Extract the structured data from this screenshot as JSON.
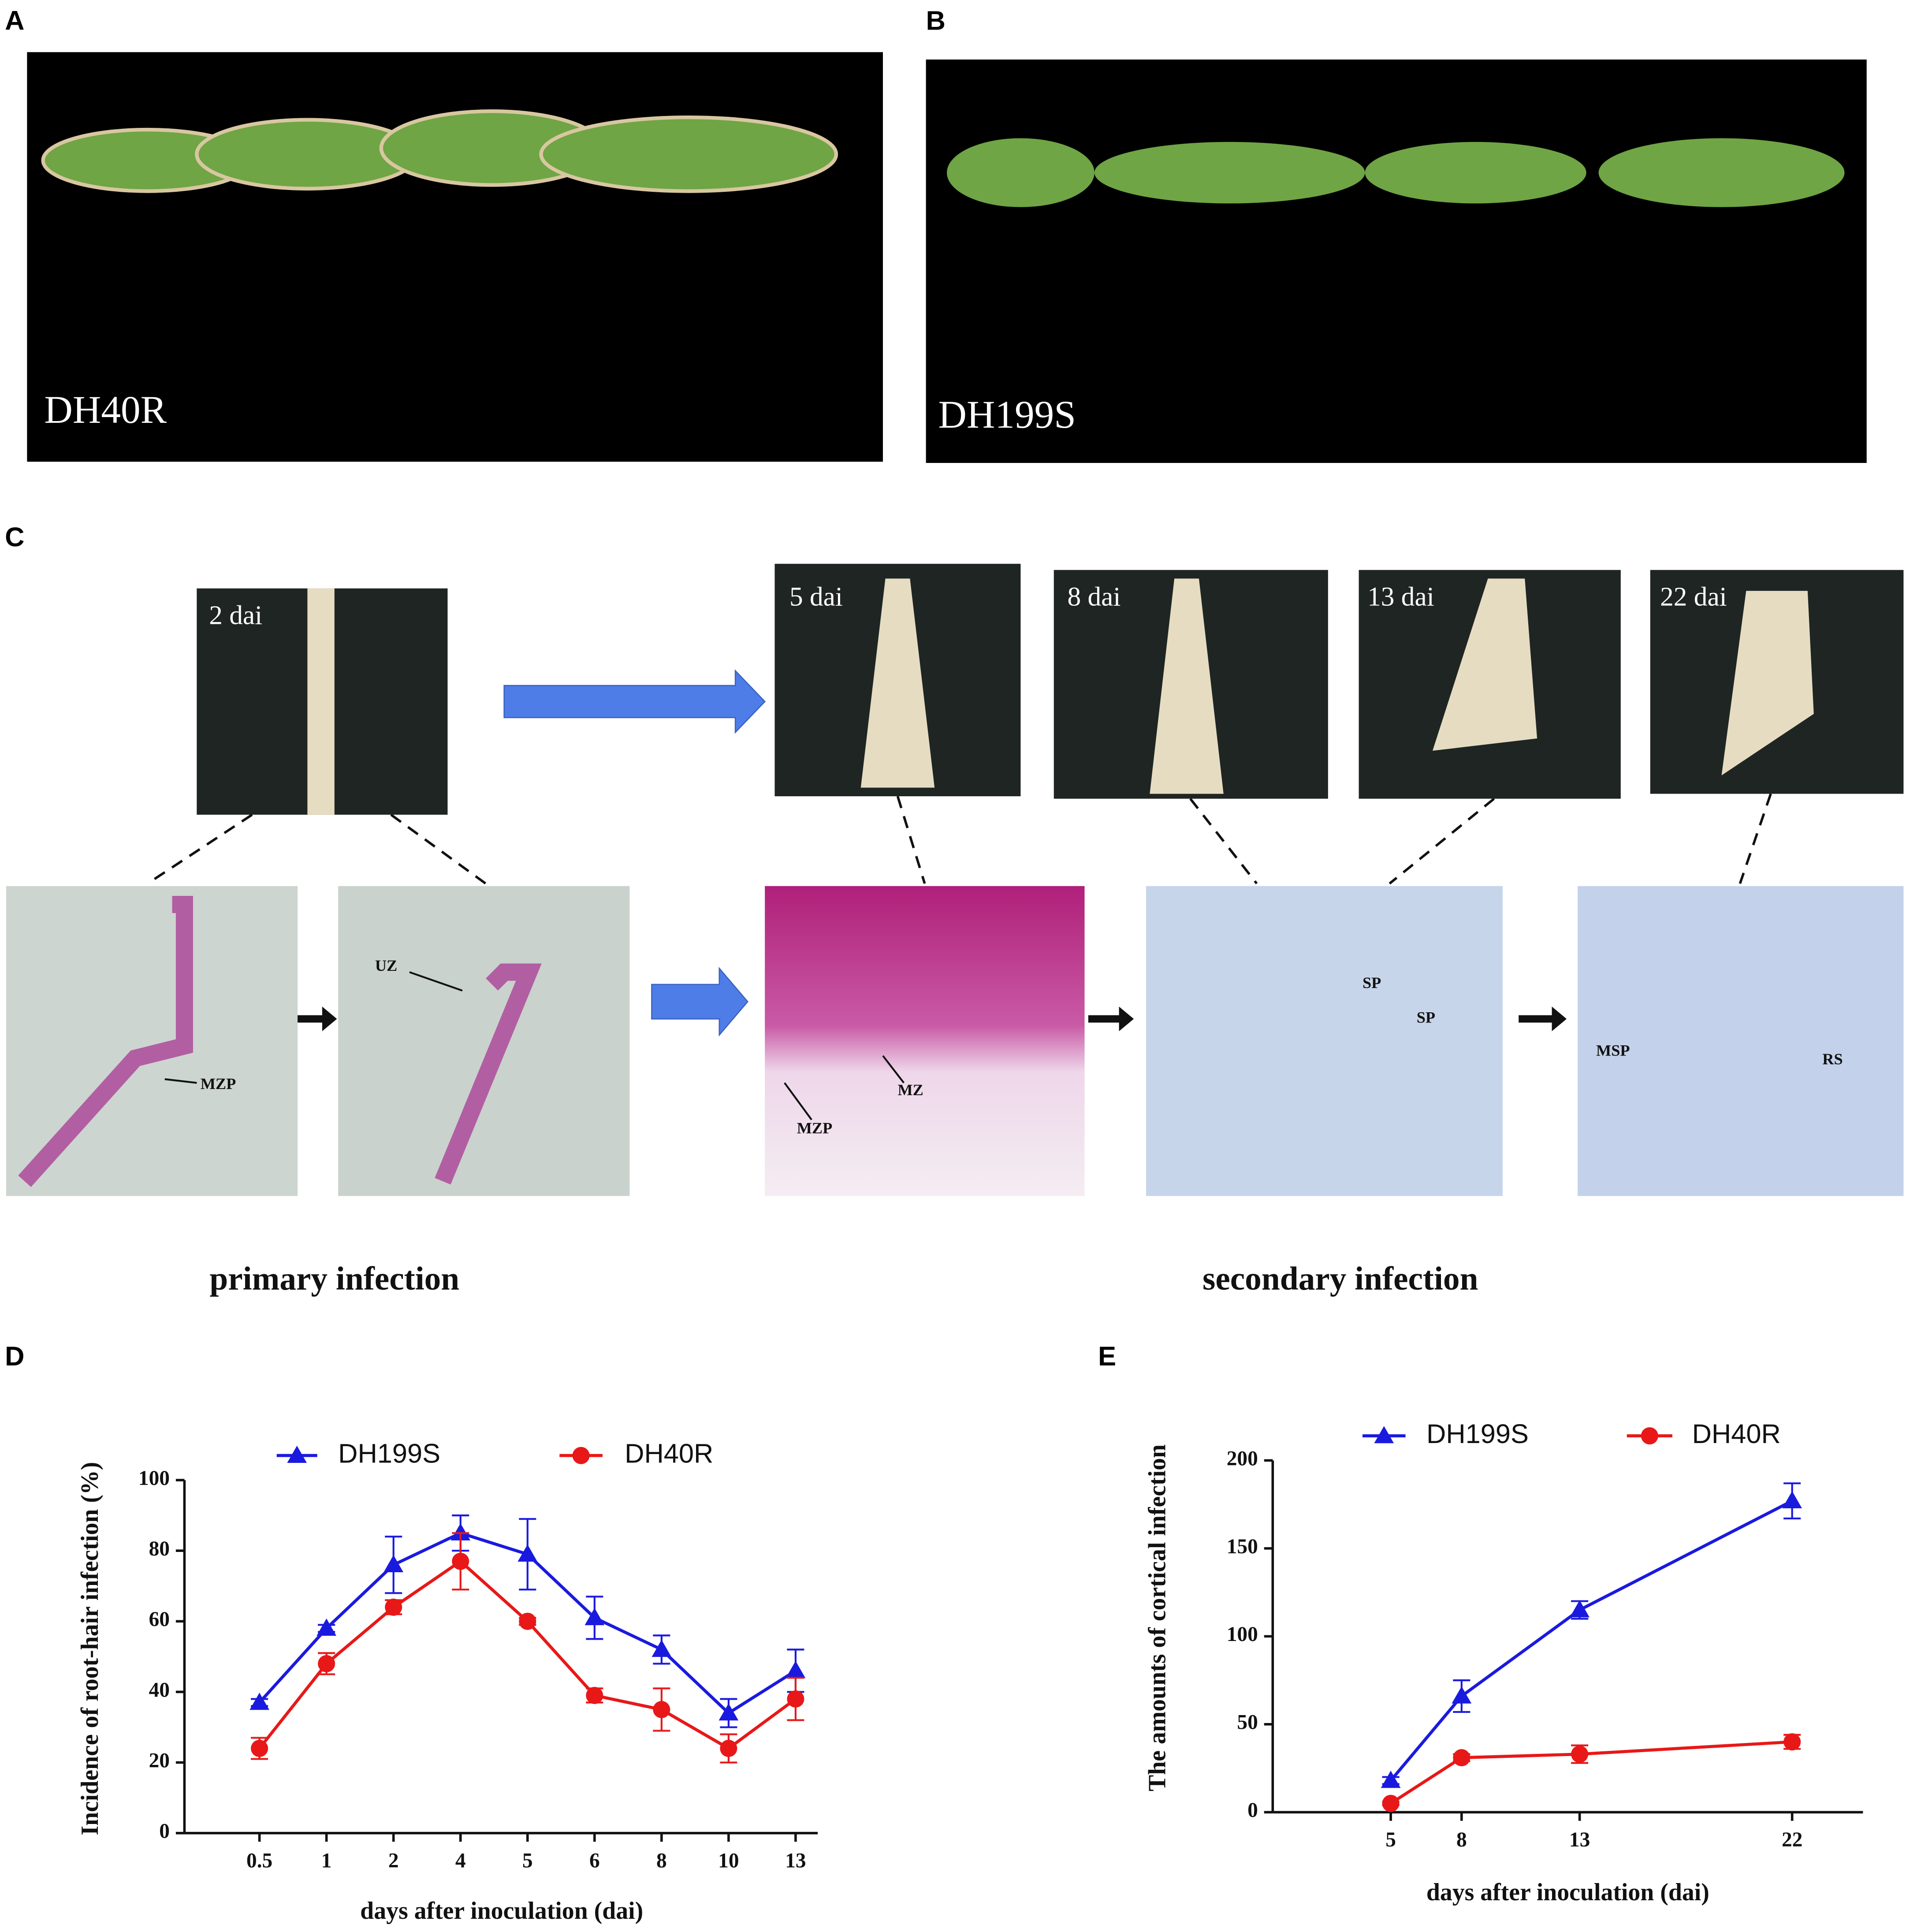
{
  "panels": {
    "A": {
      "label": "A",
      "caption": "DH40R"
    },
    "B": {
      "label": "B",
      "caption": "DH199S"
    },
    "C": {
      "label": "C",
      "photos": [
        "2 dai",
        "5 dai",
        "8 dai",
        "13 dai",
        "22 dai"
      ],
      "annotations": [
        "MZP",
        "UZ",
        "MZ",
        "MZP",
        "SP",
        "SP",
        "MSP",
        "RS"
      ],
      "stages": [
        "primary infection",
        "secondary infection"
      ]
    },
    "D": {
      "label": "D"
    },
    "E": {
      "label": "E"
    }
  },
  "chart_data": [
    {
      "type": "line",
      "y_label": "Incidence of root-hair infection (%)",
      "x_label": "days after inoculation (dai)",
      "categories": [
        "0.5",
        "1",
        "2",
        "4",
        "5",
        "6",
        "8",
        "10",
        "13"
      ],
      "ylim": [
        0,
        100
      ],
      "yticks": [
        0,
        20,
        40,
        60,
        80,
        100
      ],
      "series": [
        {
          "name": "DH199S",
          "color": "#1a1adf",
          "marker": "triangle",
          "values": [
            37,
            58,
            76,
            85,
            79,
            61,
            52,
            34,
            46
          ],
          "errors": [
            1,
            1,
            8,
            5,
            10,
            6,
            4,
            4,
            6
          ]
        },
        {
          "name": "DH40R",
          "color": "#e81818",
          "marker": "circle",
          "values": [
            24,
            48,
            64,
            77,
            60,
            39,
            35,
            24,
            38
          ],
          "errors": [
            3,
            3,
            2,
            8,
            1,
            2,
            6,
            4,
            6
          ]
        }
      ]
    },
    {
      "type": "line",
      "y_label": "The amounts of cortical infection",
      "x_label": "days after inoculation (dai)",
      "x": [
        5,
        8,
        13,
        22
      ],
      "xlim": [
        0,
        25
      ],
      "xticks": [
        5,
        8,
        13,
        22
      ],
      "ylim": [
        0,
        200
      ],
      "yticks": [
        0,
        50,
        100,
        150,
        200
      ],
      "series": [
        {
          "name": "DH199S",
          "color": "#1a1adf",
          "marker": "triangle",
          "values": [
            18,
            66,
            115,
            177
          ],
          "errors": [
            2,
            9,
            5,
            10
          ]
        },
        {
          "name": "DH40R",
          "color": "#e81818",
          "marker": "circle",
          "values": [
            5,
            31,
            33,
            40
          ],
          "errors": [
            1,
            2,
            5,
            4
          ]
        }
      ]
    }
  ]
}
